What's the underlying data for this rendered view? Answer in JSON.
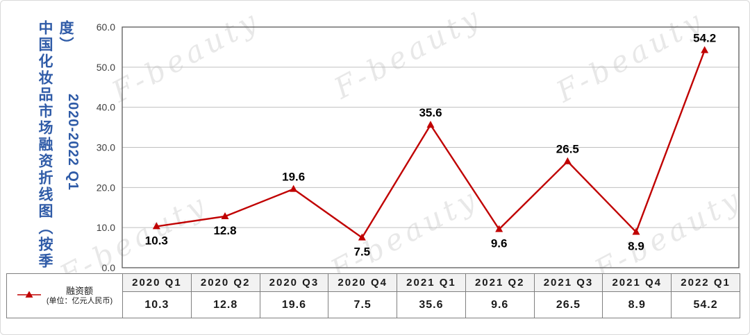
{
  "title": {
    "main": "中国化妆品市场融资折线图（按季度）",
    "range": "2020-2022 Q1"
  },
  "watermark": {
    "text": "F-beauty"
  },
  "legend": {
    "series_label": "融资额",
    "unit_label": "(单位：亿元人民币)"
  },
  "chart_data": {
    "type": "line",
    "title": "中国化妆品市场融资折线图（按季度）2020-2022 Q1",
    "categories": [
      "2020 Q1",
      "2020 Q2",
      "2020 Q3",
      "2020 Q4",
      "2021 Q1",
      "2021 Q2",
      "2021 Q3",
      "2021 Q4",
      "2022 Q1"
    ],
    "series": [
      {
        "name": "融资额",
        "unit": "亿元人民币",
        "values": [
          10.3,
          12.8,
          19.6,
          7.5,
          35.6,
          9.6,
          26.5,
          8.9,
          54.2
        ]
      }
    ],
    "ylim": [
      0,
      60
    ],
    "ytick_step": 10,
    "yticks": [
      "60.0",
      "50.0",
      "40.0",
      "30.0",
      "20.0",
      "10.0",
      "0.0"
    ],
    "grid": true,
    "legend_position": "table-left",
    "label_positions": [
      "below",
      "below",
      "above",
      "below",
      "above",
      "below",
      "above",
      "below",
      "above"
    ]
  },
  "colors": {
    "title_blue": "#2F5BA7",
    "line_red": "#C00000",
    "grid_gray": "#BFBFBF",
    "border_gray": "#595959",
    "label_black": "#000000"
  }
}
